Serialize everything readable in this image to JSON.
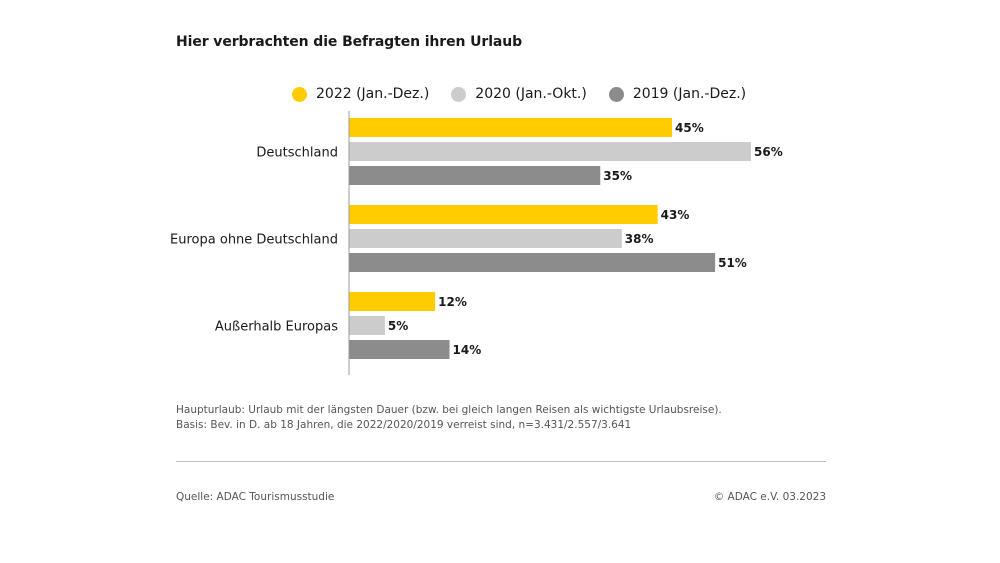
{
  "chart_data": {
    "type": "bar",
    "orientation": "horizontal",
    "title": "Hier verbrachten die Befragten ihren Urlaub",
    "categories": [
      "Deutschland",
      "Europa ohne Deutschland",
      "Außerhalb Europas"
    ],
    "series": [
      {
        "name": "2022 (Jan.-Dez.)",
        "values": [
          45,
          43,
          12
        ],
        "labels": [
          "45%",
          "43%",
          "12%"
        ],
        "color": "#ffcc00"
      },
      {
        "name": "2020 (Jan.-Okt.)",
        "values": [
          56,
          38,
          5
        ],
        "labels": [
          "56%",
          "38%",
          "5%"
        ],
        "color": "#cccccc"
      },
      {
        "name": "2019 (Jan.-Dez.)",
        "values": [
          35,
          51,
          14
        ],
        "labels": [
          "35%",
          "51%",
          "14%"
        ],
        "color": "#8c8c8c"
      }
    ],
    "xlim": [
      0,
      56
    ],
    "grid": false,
    "legend_position": "top"
  },
  "notes": {
    "line1": "Haupturlaub: Urlaub mit der längsten Dauer (bzw. bei gleich langen Reisen als wichtigste Urlaubsreise).",
    "line2": "Basis: Bev. in D. ab 18 Jahren, die 2022/2020/2019 verreist sind, n=3.431/2.557/3.641"
  },
  "footer": {
    "source": "Quelle: ADAC Tourismusstudie",
    "copyright": "© ADAC e.V. 03.2023"
  }
}
